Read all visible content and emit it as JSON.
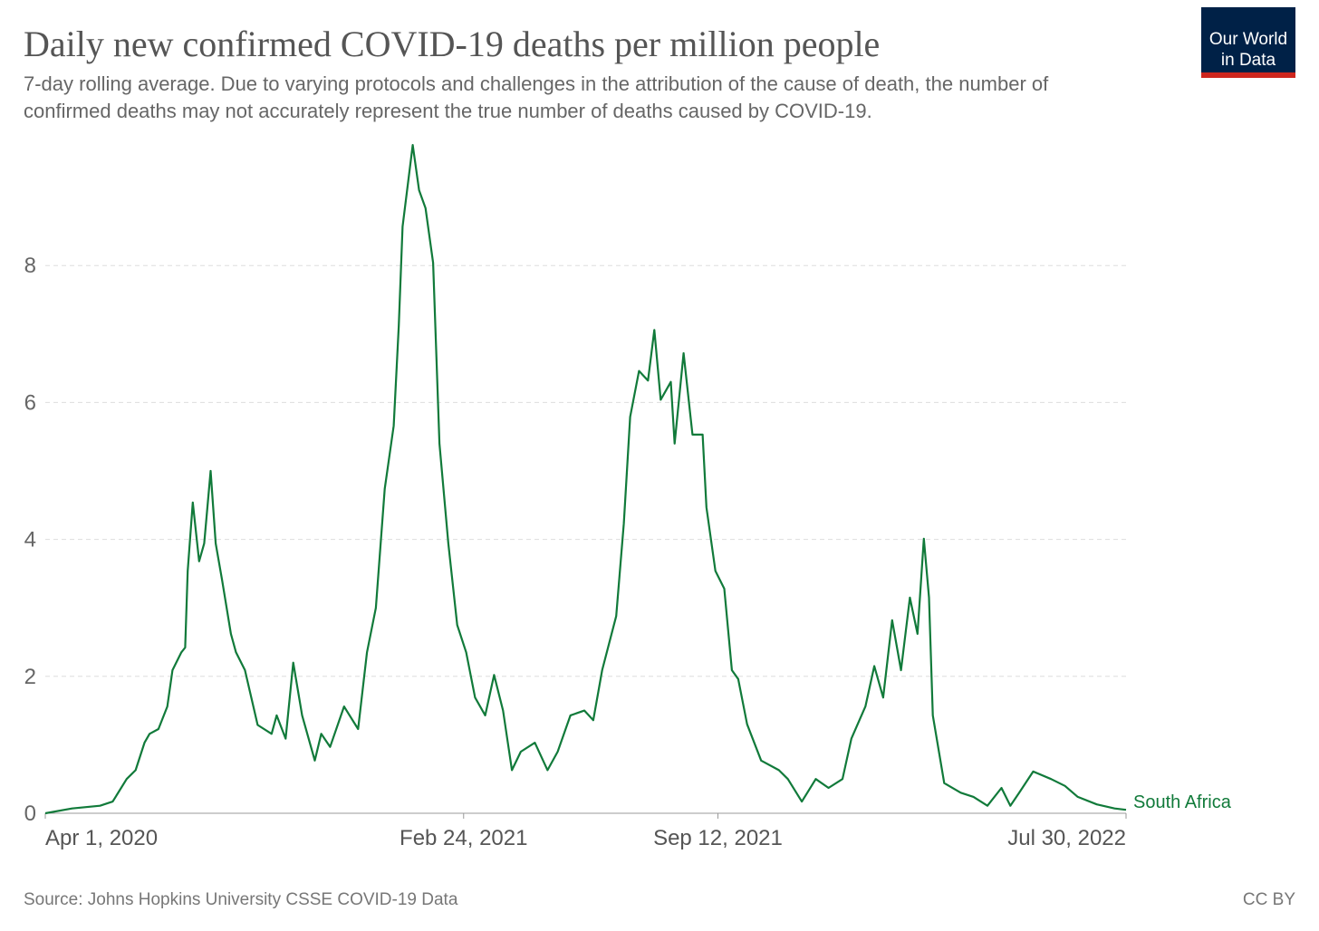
{
  "chart_data": {
    "type": "line",
    "title": "Daily new confirmed COVID-19 deaths per million people",
    "subtitle": [
      "7-day rolling average. Due to varying protocols and challenges in the attribution of the cause of death, the number of",
      "confirmed deaths may not accurately represent the true number of deaths caused by COVID-19."
    ],
    "logo": [
      "Our World",
      "in Data"
    ],
    "source": "Source: Johns Hopkins University CSSE COVID-19 Data",
    "license": "CC BY",
    "x": [
      "2020-04-01",
      "2020-04-22",
      "2020-05-14",
      "2020-05-24",
      "2020-06-04",
      "2020-06-11",
      "2020-06-18",
      "2020-06-22",
      "2020-06-29",
      "2020-07-06",
      "2020-07-10",
      "2020-07-17",
      "2020-07-20",
      "2020-07-22",
      "2020-07-26",
      "2020-07-31",
      "2020-08-04",
      "2020-08-09",
      "2020-08-13",
      "2020-08-18",
      "2020-08-25",
      "2020-08-29",
      "2020-09-05",
      "2020-09-15",
      "2020-09-26",
      "2020-09-30",
      "2020-10-07",
      "2020-10-13",
      "2020-10-20",
      "2020-10-30",
      "2020-11-04",
      "2020-11-11",
      "2020-11-22",
      "2020-12-03",
      "2020-12-10",
      "2020-12-17",
      "2020-12-24",
      "2020-12-31",
      "2021-01-04",
      "2021-01-07",
      "2021-01-15",
      "2021-01-20",
      "2021-01-25",
      "2021-01-31",
      "2021-02-05",
      "2021-02-12",
      "2021-02-19",
      "2021-02-26",
      "2021-03-05",
      "2021-03-13",
      "2021-03-20",
      "2021-03-27",
      "2021-04-03",
      "2021-04-10",
      "2021-04-21",
      "2021-05-01",
      "2021-05-09",
      "2021-05-19",
      "2021-05-30",
      "2021-06-06",
      "2021-06-13",
      "2021-06-24",
      "2021-06-30",
      "2021-07-05",
      "2021-07-12",
      "2021-07-19",
      "2021-07-24",
      "2021-07-29",
      "2021-08-06",
      "2021-08-09",
      "2021-08-16",
      "2021-08-23",
      "2021-08-31",
      "2021-09-03",
      "2021-09-10",
      "2021-09-17",
      "2021-09-23",
      "2021-09-28",
      "2021-10-05",
      "2021-10-16",
      "2021-10-30",
      "2021-11-06",
      "2021-11-17",
      "2021-11-28",
      "2021-12-08",
      "2021-12-19",
      "2021-12-26",
      "2022-01-06",
      "2022-01-13",
      "2022-01-20",
      "2022-01-27",
      "2022-02-03",
      "2022-02-10",
      "2022-02-16",
      "2022-02-21",
      "2022-02-25",
      "2022-02-28",
      "2022-03-09",
      "2022-03-22",
      "2022-04-01",
      "2022-04-12",
      "2022-04-23",
      "2022-04-30",
      "2022-05-07",
      "2022-05-18",
      "2022-06-01",
      "2022-06-12",
      "2022-06-22",
      "2022-07-07",
      "2022-07-21",
      "2022-07-30"
    ],
    "series": [
      {
        "name": "South Africa",
        "color": "#117a3a",
        "values": [
          0,
          0.07,
          0.11,
          0.17,
          0.5,
          0.63,
          1.03,
          1.16,
          1.23,
          1.56,
          2.09,
          2.35,
          2.42,
          3.54,
          4.54,
          3.68,
          3.94,
          5.0,
          3.94,
          3.41,
          2.62,
          2.35,
          2.09,
          1.29,
          1.16,
          1.43,
          1.09,
          2.2,
          1.43,
          0.77,
          1.16,
          0.97,
          1.56,
          1.23,
          2.35,
          3.0,
          4.74,
          5.66,
          7.12,
          8.57,
          9.76,
          9.1,
          8.84,
          8.04,
          5.4,
          3.94,
          2.75,
          2.35,
          1.69,
          1.43,
          2.02,
          1.5,
          0.63,
          0.9,
          1.03,
          0.63,
          0.9,
          1.43,
          1.5,
          1.36,
          2.09,
          2.88,
          4.23,
          5.79,
          6.46,
          6.32,
          7.06,
          6.04,
          6.3,
          5.4,
          6.72,
          5.53,
          5.53,
          4.47,
          3.54,
          3.28,
          2.09,
          1.96,
          1.3,
          0.77,
          0.63,
          0.5,
          0.17,
          0.5,
          0.37,
          0.5,
          1.09,
          1.56,
          2.15,
          1.69,
          2.82,
          2.09,
          3.15,
          2.62,
          4.01,
          3.15,
          1.43,
          0.44,
          0.3,
          0.24,
          0.11,
          0.37,
          0.11,
          0.3,
          0.61,
          0.5,
          0.4,
          0.24,
          0.13,
          0.07,
          0.05
        ]
      }
    ],
    "xlim": [
      "2020-04-01",
      "2022-07-30"
    ],
    "xticks": [
      {
        "value": "2020-04-01",
        "label": "Apr 1, 2020"
      },
      {
        "value": "2021-02-24",
        "label": "Feb 24, 2021"
      },
      {
        "value": "2021-09-12",
        "label": "Sep 12, 2021"
      },
      {
        "value": "2022-07-30",
        "label": "Jul 30, 2022"
      }
    ],
    "ylim": [
      0,
      10
    ],
    "yticks": [
      0,
      2,
      4,
      6,
      8
    ],
    "grid": true
  }
}
